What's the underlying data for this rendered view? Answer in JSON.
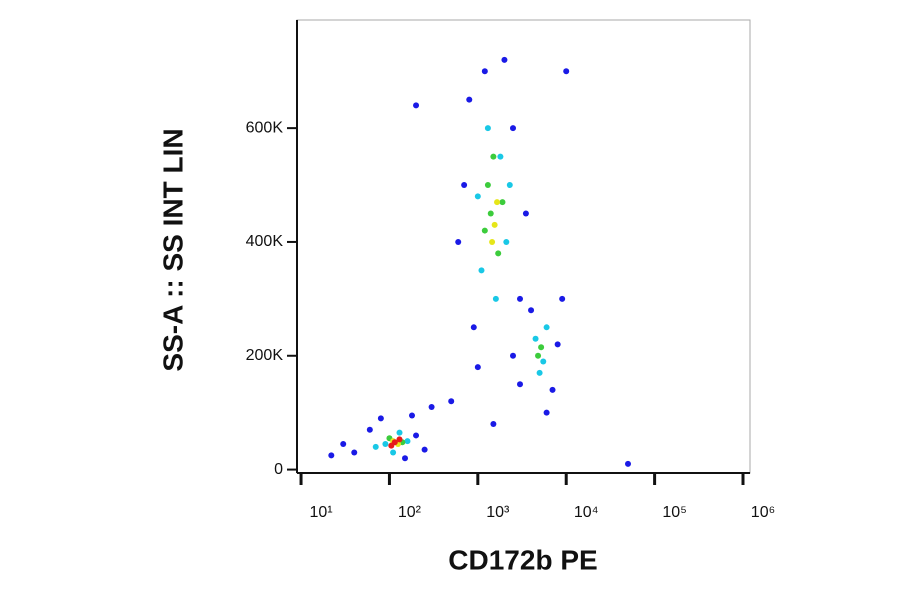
{
  "chart_data": {
    "type": "scatter",
    "x_label": "CD172b PE",
    "y_label": "SS-A :: SS INT LIN",
    "x_scale": "log",
    "xlim": [
      9,
      1200000
    ],
    "xticks": [
      {
        "value": 10,
        "label": "10¹"
      },
      {
        "value": 100,
        "label": "10²"
      },
      {
        "value": 1000,
        "label": "10³"
      },
      {
        "value": 10000,
        "label": "10⁴"
      },
      {
        "value": 100000,
        "label": "10⁵"
      },
      {
        "value": 1000000,
        "label": "10⁶"
      }
    ],
    "ylim": [
      -6000,
      790000
    ],
    "yticks": [
      0,
      {
        "value": 200000,
        "label": "200K"
      },
      {
        "value": 400000,
        "label": "400K"
      },
      {
        "value": 600000,
        "label": "600K"
      }
    ],
    "series": [
      {
        "color": "#1a1ae6",
        "x": [
          40,
          60,
          200,
          250,
          30,
          80,
          180,
          300,
          22,
          150,
          700,
          800,
          2500,
          3000,
          900,
          1200,
          2000,
          600,
          3500,
          1000,
          3000,
          8000,
          6000,
          4000,
          9000,
          2500,
          7000,
          500,
          1500,
          10000,
          200,
          50000
        ],
        "y": [
          30000,
          70000,
          60000,
          35000,
          45000,
          90000,
          95000,
          110000,
          25000,
          20000,
          500000,
          650000,
          600000,
          300000,
          250000,
          700000,
          720000,
          400000,
          450000,
          180000,
          150000,
          220000,
          100000,
          280000,
          300000,
          200000,
          140000,
          120000,
          80000,
          700000,
          640000,
          10000
        ]
      },
      {
        "color": "#19c8e6",
        "x": [
          90,
          130,
          70,
          160,
          110,
          1100,
          1800,
          1300,
          2100,
          1000,
          1600,
          2300,
          4500,
          5500,
          6000,
          5000
        ],
        "y": [
          45000,
          65000,
          40000,
          50000,
          30000,
          350000,
          550000,
          600000,
          400000,
          480000,
          300000,
          500000,
          230000,
          190000,
          250000,
          170000
        ]
      },
      {
        "color": "#3ccc3c",
        "x": [
          1400,
          1700,
          1300,
          1900,
          1500,
          1200,
          5200,
          4800,
          100,
          140
        ],
        "y": [
          450000,
          380000,
          500000,
          470000,
          550000,
          420000,
          215000,
          200000,
          55000,
          48000
        ]
      },
      {
        "color": "#e6e619",
        "x": [
          1550,
          1650,
          1450,
          110,
          125
        ],
        "y": [
          430000,
          470000,
          400000,
          50000,
          45000
        ]
      },
      {
        "color": "#e61919",
        "x": [
          115,
          105,
          130
        ],
        "y": [
          48000,
          42000,
          53000
        ]
      }
    ]
  }
}
